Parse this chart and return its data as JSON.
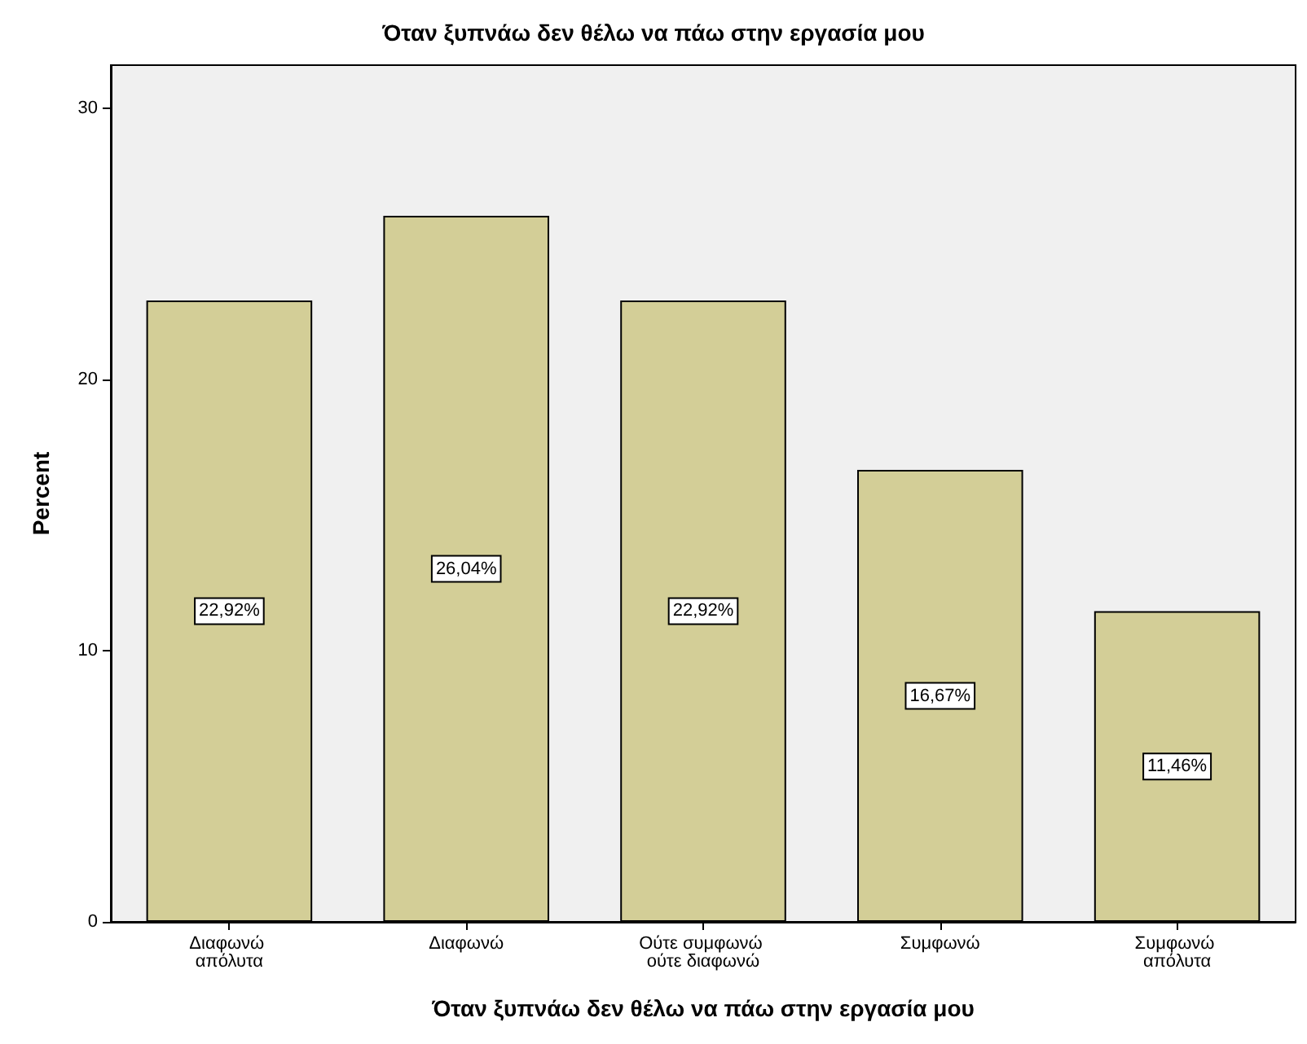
{
  "chart_data": {
    "type": "bar",
    "title": "Όταν ξυπνάω δεν θέλω να πάω στην εργασία μου",
    "xlabel": "Όταν ξυπνάω δεν θέλω να πάω στην εργασία μου",
    "ylabel": "Percent",
    "categories": [
      "Διαφωνώ απόλυτα",
      "Διαφωνώ",
      "Ούτε συμφωνώ ούτε διαφωνώ",
      "Συμφωνώ",
      "Συμφωνώ απόλυτα"
    ],
    "values": [
      22.92,
      26.04,
      22.92,
      16.67,
      11.46
    ],
    "value_labels": [
      "22,92%",
      "26,04%",
      "22,92%",
      "16,67%",
      "11,46%"
    ],
    "color": "#d3ce97",
    "ylim": [
      0,
      31.6
    ],
    "yticks": [
      0,
      10,
      20,
      30
    ],
    "grid": false
  }
}
